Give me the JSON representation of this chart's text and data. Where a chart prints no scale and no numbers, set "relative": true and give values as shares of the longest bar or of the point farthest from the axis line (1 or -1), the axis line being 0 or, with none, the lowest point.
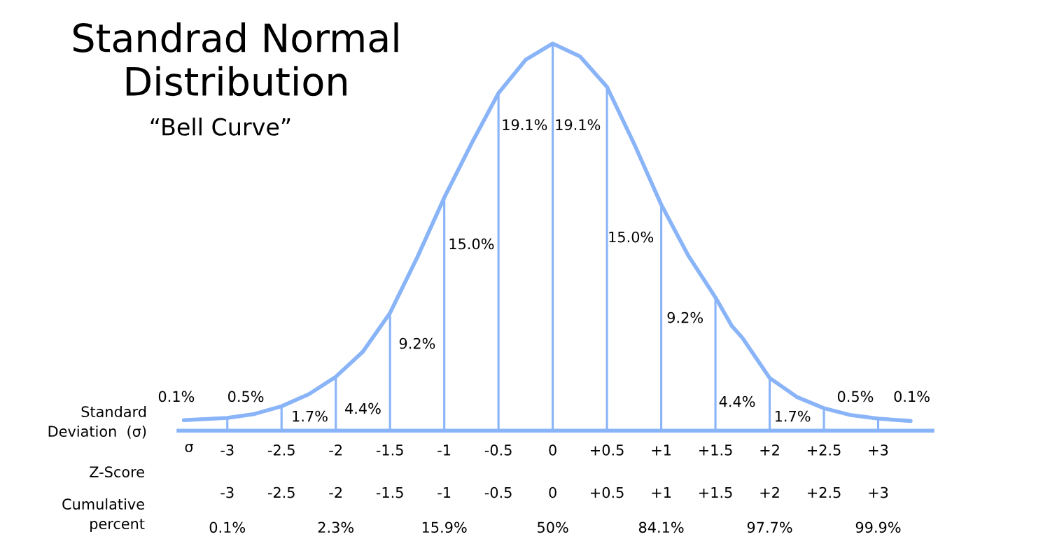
{
  "chart_data": {
    "type": "line",
    "title": "Standrad Normal Distribution",
    "subtitle": "“Bell Curve”",
    "relative": true,
    "x": [
      -3.4,
      -3,
      -2.75,
      -2.5,
      -2.25,
      -2,
      -1.75,
      -1.5,
      -1.25,
      -1,
      -0.75,
      -0.5,
      -0.25,
      0,
      0.25,
      0.5,
      0.75,
      1,
      1.25,
      1.5,
      1.65,
      1.75,
      2,
      2.25,
      2.5,
      2.75,
      3,
      3.3
    ],
    "series": [
      {
        "color": "#8ab4f8",
        "values": [
          0.027,
          0.033,
          0.043,
          0.063,
          0.094,
          0.139,
          0.204,
          0.304,
          0.447,
          0.602,
          0.741,
          0.872,
          0.958,
          1,
          0.967,
          0.888,
          0.741,
          0.584,
          0.452,
          0.344,
          0.271,
          0.239,
          0.136,
          0.087,
          0.058,
          0.04,
          0.031,
          0.025
        ]
      },
      {
        "type": "bar",
        "color": "#8ab4f8",
        "x": [
          -3,
          -2.5,
          -2,
          -1.5,
          -1,
          -0.5,
          0,
          0.5,
          1,
          1.5,
          2,
          2.5,
          3
        ],
        "values": [
          0.033,
          0.063,
          0.139,
          0.304,
          0.602,
          0.872,
          1,
          0.888,
          0.584,
          0.344,
          0.136,
          0.058,
          0.031
        ]
      }
    ],
    "xlim": [
      -3.45,
      3.5
    ],
    "xticks": [
      -3,
      -2.5,
      -2,
      -1.5,
      -1,
      -0.5,
      0,
      {
        "value": 0.5,
        "label": "+0.5"
      },
      {
        "value": 1,
        "label": "+1"
      },
      {
        "value": 1.5,
        "label": "+1.5"
      },
      {
        "value": 2,
        "label": "+2"
      },
      {
        "value": 2.5,
        "label": "+2.5"
      },
      {
        "value": 3,
        "label": "+3"
      }
    ],
    "tick_labels": "x",
    "grid": false,
    "marker": "none",
    "line_style": "solid",
    "legend": false,
    "annotations": [
      "0.1%",
      "0.5%",
      "1.7%",
      "4.4%",
      "9.2%",
      "15.0%",
      "19.1%",
      "19.1%",
      "15.0%",
      "9.2%",
      "4.4%",
      "1.7%",
      "0.5%",
      "0.1%",
      "-3",
      "-2.5",
      "-2",
      "-1.5",
      "-1",
      "-0.5",
      "0",
      "+0.5",
      "+1",
      "+1.5",
      "+2",
      "+2.5",
      "+3",
      "0.1%",
      "2.3%",
      "15.9%",
      "50%",
      "84.1%",
      "97.7%",
      "99.9%",
      "Standard\nDeviation  (σ)",
      "σ",
      "Z-Score",
      "Cumulative\npercent"
    ]
  }
}
